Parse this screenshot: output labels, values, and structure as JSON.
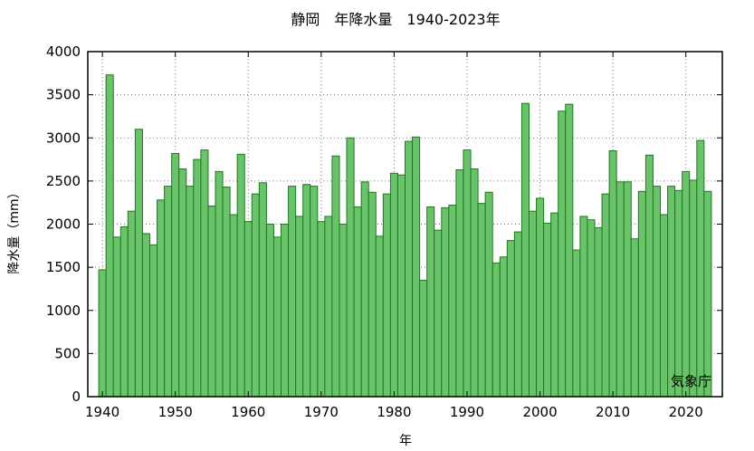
{
  "chart_data": {
    "type": "bar",
    "title": "静岡　年降水量　1940-2023年",
    "xlabel": "年",
    "ylabel": "降水量（mm）",
    "source_label": "気象庁",
    "grid": true,
    "ylim": [
      0,
      4000
    ],
    "xlim": [
      1938,
      2025
    ],
    "y_ticks": [
      0,
      500,
      1000,
      1500,
      2000,
      2500,
      3000,
      3500,
      4000
    ],
    "x_ticks": [
      1940,
      1950,
      1960,
      1970,
      1980,
      1990,
      2000,
      2010,
      2020
    ],
    "bar_color": "#6ac26a",
    "bar_edge_color": "#1e7a1e",
    "categories": [
      1940,
      1941,
      1942,
      1943,
      1944,
      1945,
      1946,
      1947,
      1948,
      1949,
      1950,
      1951,
      1952,
      1953,
      1954,
      1955,
      1956,
      1957,
      1958,
      1959,
      1960,
      1961,
      1962,
      1963,
      1964,
      1965,
      1966,
      1967,
      1968,
      1969,
      1970,
      1971,
      1972,
      1973,
      1974,
      1975,
      1976,
      1977,
      1978,
      1979,
      1980,
      1981,
      1982,
      1983,
      1984,
      1985,
      1986,
      1987,
      1988,
      1989,
      1990,
      1991,
      1992,
      1993,
      1994,
      1995,
      1996,
      1997,
      1998,
      1999,
      2000,
      2001,
      2002,
      2003,
      2004,
      2005,
      2006,
      2007,
      2008,
      2009,
      2010,
      2011,
      2012,
      2013,
      2014,
      2015,
      2016,
      2017,
      2018,
      2019,
      2020,
      2021,
      2022,
      2023
    ],
    "values": [
      1470,
      3730,
      1850,
      1970,
      2150,
      3100,
      1890,
      1760,
      2280,
      2440,
      2820,
      2640,
      2440,
      2750,
      2860,
      2210,
      2610,
      2430,
      2110,
      2810,
      2030,
      2350,
      2480,
      2000,
      1850,
      2000,
      2440,
      2090,
      2460,
      2440,
      2030,
      2090,
      2790,
      2000,
      3000,
      2200,
      2490,
      2370,
      1860,
      2350,
      2590,
      2570,
      2960,
      3010,
      1350,
      2200,
      1930,
      2190,
      2220,
      2630,
      2860,
      2640,
      2240,
      2370,
      1550,
      1620,
      1810,
      1910,
      3400,
      2150,
      2300,
      2010,
      2130,
      3310,
      3390,
      1700,
      2090,
      2050,
      1960,
      2350,
      2850,
      2490,
      2490,
      1830,
      2380,
      2800,
      2440,
      2110,
      2440,
      2390,
      2610,
      2510,
      2970,
      2380
    ]
  }
}
